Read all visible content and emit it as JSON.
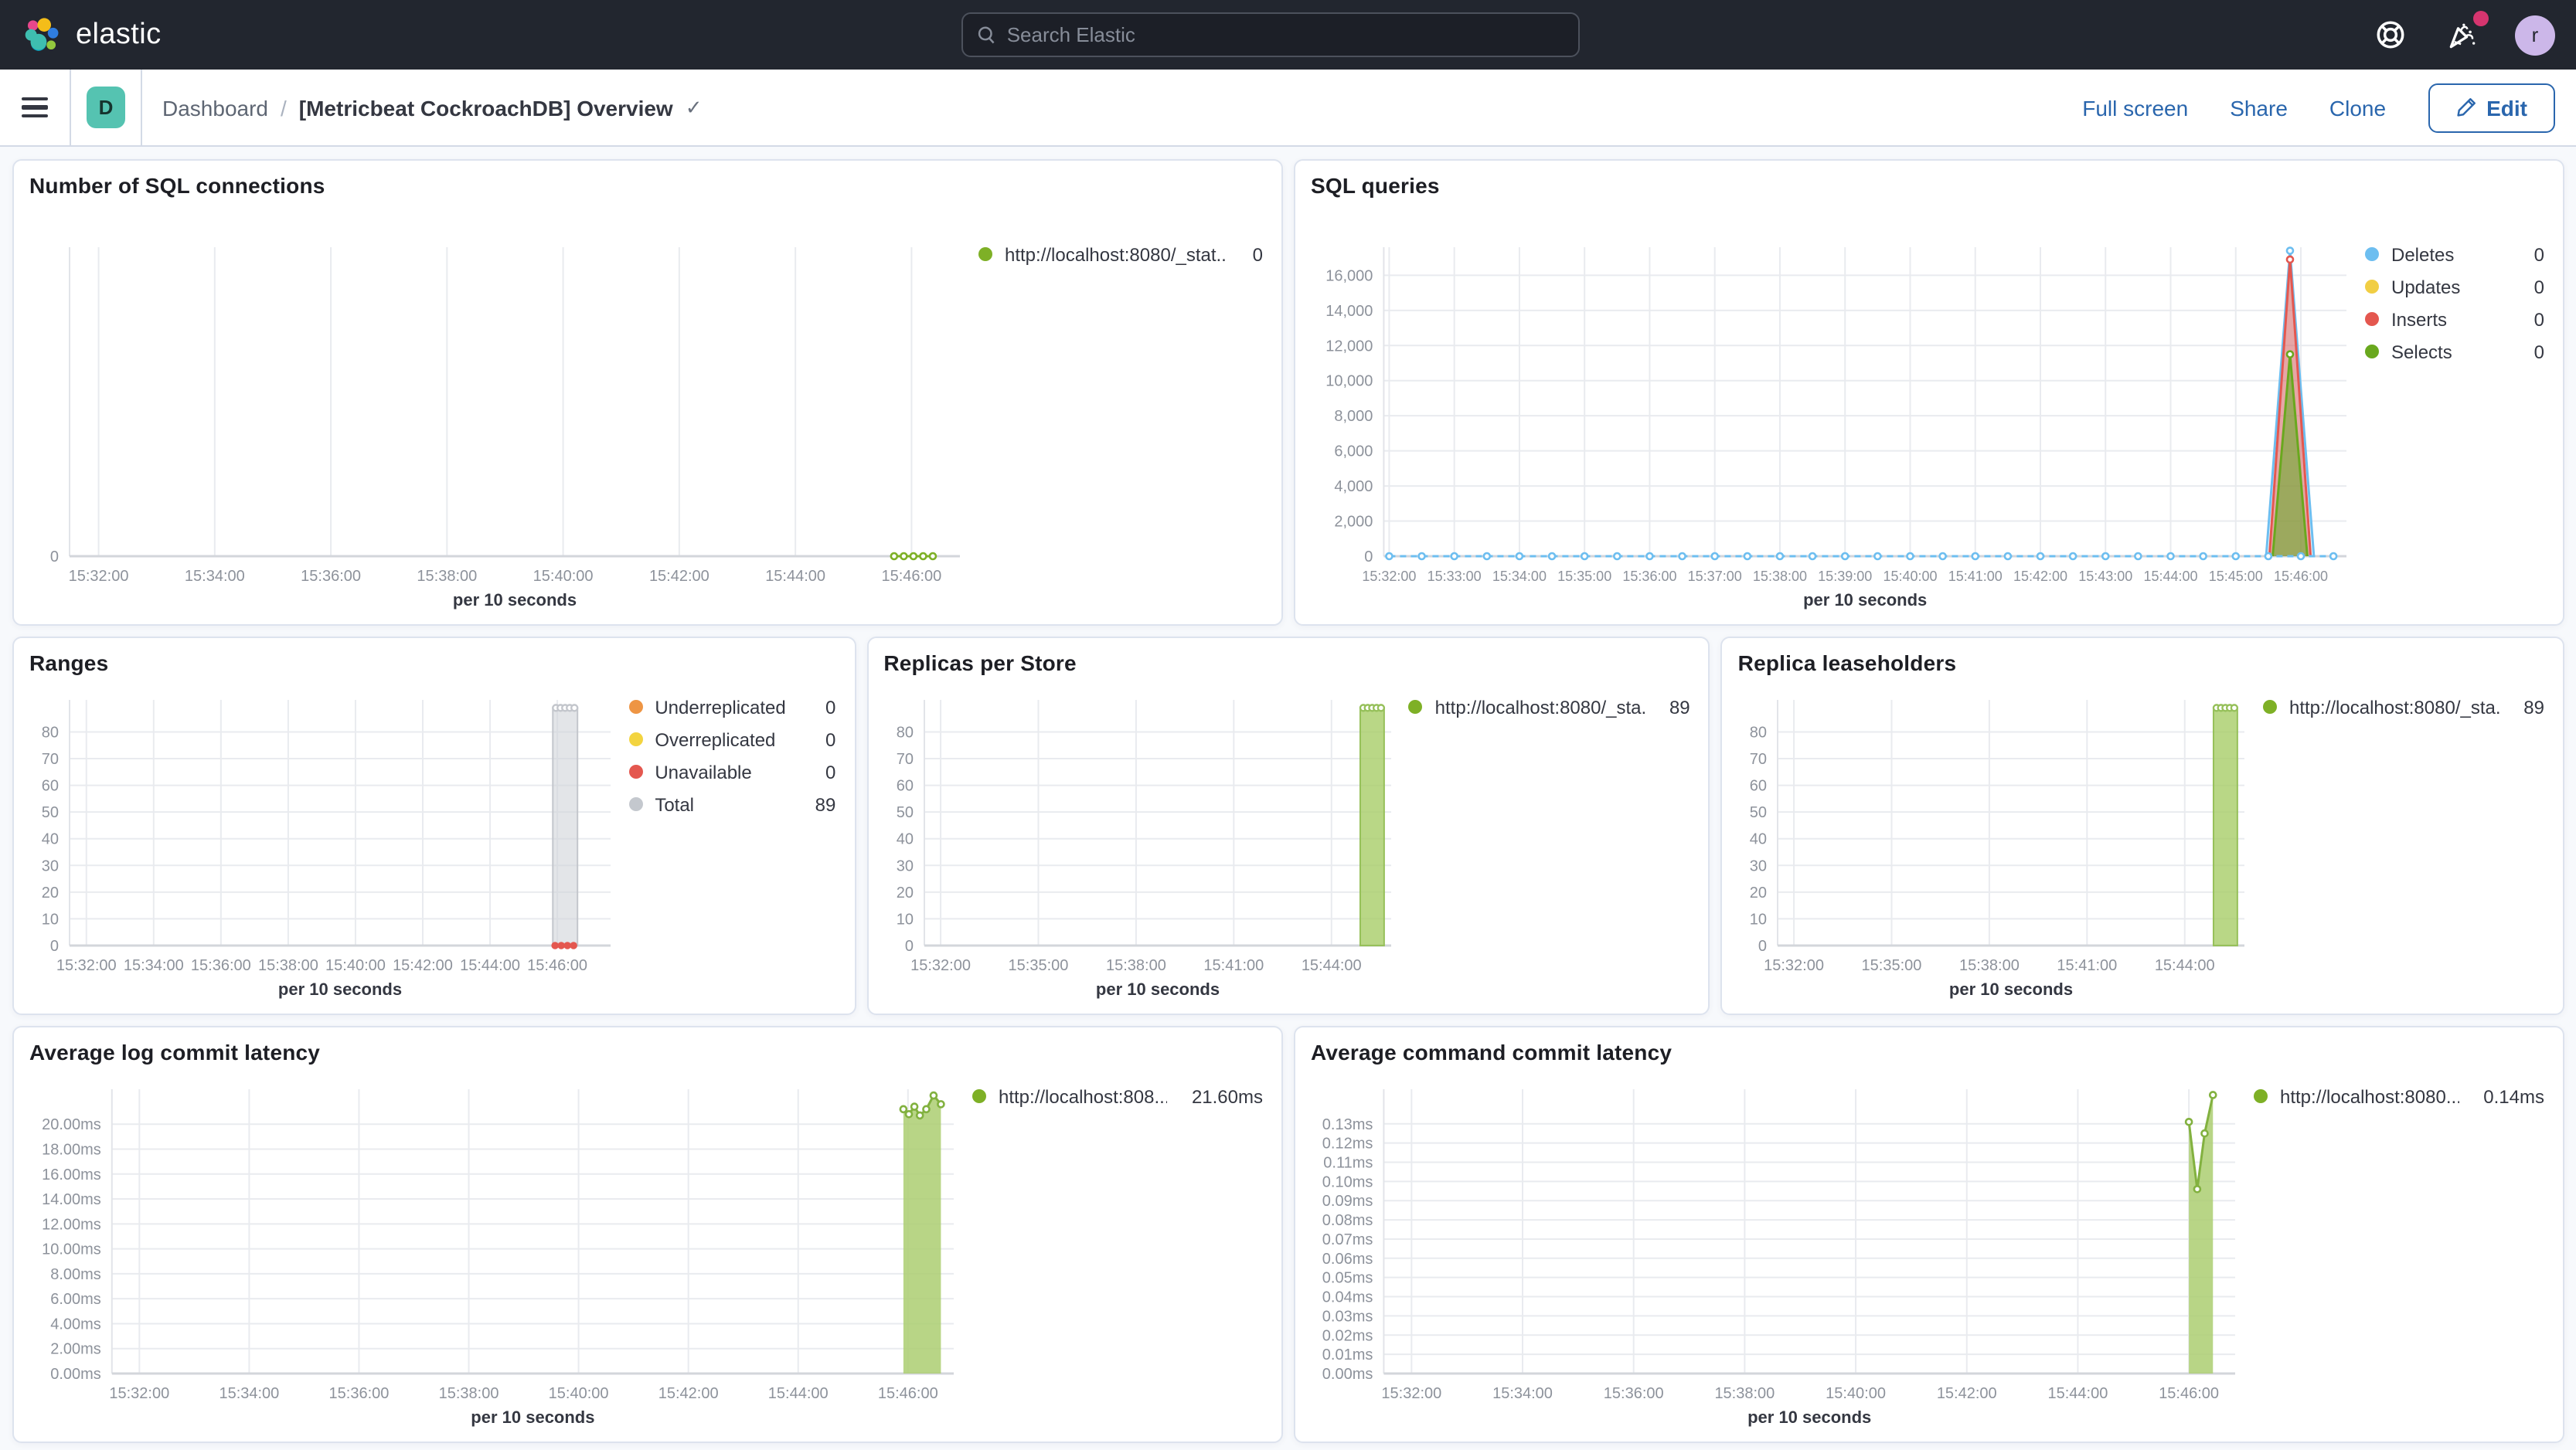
{
  "header": {
    "logo_text": "elastic",
    "search_placeholder": "Search Elastic",
    "avatar_initial": "r"
  },
  "toolbar": {
    "badge": "D",
    "breadcrumb_root": "Dashboard",
    "breadcrumb_separator": "/",
    "breadcrumb_current": "[Metricbeat CockroachDB] Overview",
    "check_glyph": "✓",
    "full_screen_label": "Full screen",
    "share_label": "Share",
    "clone_label": "Clone",
    "edit_label": "Edit"
  },
  "chart_data": [
    {
      "type": "line",
      "title": "Number of SQL connections",
      "xlabel": "per 10 seconds",
      "x_domain": [
        90,
        1010
      ],
      "x_ticks": [
        [
          120,
          "15:32:00"
        ],
        [
          240,
          "15:34:00"
        ],
        [
          360,
          "15:36:00"
        ],
        [
          480,
          "15:38:00"
        ],
        [
          600,
          "15:40:00"
        ],
        [
          720,
          "15:42:00"
        ],
        [
          840,
          "15:44:00"
        ],
        [
          960,
          "15:46:00"
        ]
      ],
      "y_domain": [
        0,
        1
      ],
      "y_ticks": [
        [
          0,
          "0"
        ]
      ],
      "legend": [
        {
          "color": "#7eb026",
          "label": "http://localhost:8080/_stat...",
          "value": "0"
        }
      ],
      "series": [
        {
          "type": "line",
          "color": "#7eb026",
          "dash": true,
          "markers": true,
          "points": [
            [
              942,
              0
            ],
            [
              952,
              0
            ],
            [
              962,
              0
            ],
            [
              972,
              0
            ],
            [
              982,
              0
            ]
          ]
        }
      ]
    },
    {
      "type": "line",
      "title": "SQL queries",
      "xlabel": "per 10 seconds",
      "x_domain": [
        115,
        1002
      ],
      "x_ticks": [
        [
          120,
          "15:32:00"
        ],
        [
          180,
          "15:33:00"
        ],
        [
          240,
          "15:34:00"
        ],
        [
          300,
          "15:35:00"
        ],
        [
          360,
          "15:36:00"
        ],
        [
          420,
          "15:37:00"
        ],
        [
          480,
          "15:38:00"
        ],
        [
          540,
          "15:39:00"
        ],
        [
          600,
          "15:40:00"
        ],
        [
          660,
          "15:41:00"
        ],
        [
          720,
          "15:42:00"
        ],
        [
          780,
          "15:43:00"
        ],
        [
          840,
          "15:44:00"
        ],
        [
          900,
          "15:45:00"
        ],
        [
          960,
          "15:46:00"
        ]
      ],
      "y_domain": [
        0,
        17600
      ],
      "y_ticks": [
        [
          0,
          "0"
        ],
        [
          2000,
          "2,000"
        ],
        [
          4000,
          "4,000"
        ],
        [
          6000,
          "6,000"
        ],
        [
          8000,
          "8,000"
        ],
        [
          10000,
          "10,000"
        ],
        [
          12000,
          "12,000"
        ],
        [
          14000,
          "14,000"
        ],
        [
          16000,
          "16,000"
        ]
      ],
      "tick_font": 9,
      "legend": [
        {
          "color": "#6dbef0",
          "label": "Deletes",
          "value": "0"
        },
        {
          "color": "#f1ce44",
          "label": "Updates",
          "value": "0"
        },
        {
          "color": "#e4574f",
          "label": "Inserts",
          "value": "0"
        },
        {
          "color": "#69a81e",
          "label": "Selects",
          "value": "0"
        }
      ],
      "series": [
        {
          "type": "line",
          "color": "#6dbef0",
          "fill": "rgba(109,190,240,0.15)",
          "points": [
            [
              928,
              0
            ],
            [
              950,
              17400
            ],
            [
              972,
              0
            ]
          ],
          "mark_idx": [
            1
          ]
        },
        {
          "type": "area",
          "color": "#e4574f",
          "fill": "rgba(228,87,79,0.5)",
          "points": [
            [
              931,
              0
            ],
            [
              950,
              16900
            ],
            [
              969,
              0
            ]
          ],
          "mark_idx": [
            1
          ]
        },
        {
          "type": "area",
          "color": "#69a81e",
          "fill": "rgba(116,170,56,0.65)",
          "points": [
            [
              934,
              0
            ],
            [
              950,
              11500
            ],
            [
              966,
              0
            ]
          ],
          "mark_idx": [
            1
          ]
        },
        {
          "type": "line",
          "color": "#6dbef0",
          "dash": true,
          "markers": true,
          "points": [
            [
              120,
              0
            ],
            [
              150,
              0
            ],
            [
              180,
              0
            ],
            [
              210,
              0
            ],
            [
              240,
              0
            ],
            [
              270,
              0
            ],
            [
              300,
              0
            ],
            [
              330,
              0
            ],
            [
              360,
              0
            ],
            [
              390,
              0
            ],
            [
              420,
              0
            ],
            [
              450,
              0
            ],
            [
              480,
              0
            ],
            [
              510,
              0
            ],
            [
              540,
              0
            ],
            [
              570,
              0
            ],
            [
              600,
              0
            ],
            [
              630,
              0
            ],
            [
              660,
              0
            ],
            [
              690,
              0
            ],
            [
              720,
              0
            ],
            [
              750,
              0
            ],
            [
              780,
              0
            ],
            [
              810,
              0
            ],
            [
              840,
              0
            ],
            [
              870,
              0
            ],
            [
              900,
              0
            ],
            [
              930,
              0
            ],
            [
              960,
              0
            ],
            [
              990,
              0
            ]
          ]
        }
      ]
    },
    {
      "type": "bar",
      "title": "Ranges",
      "xlabel": "per 10 seconds",
      "x_domain": [
        90,
        1055
      ],
      "x_ticks": [
        [
          120,
          "15:32:00"
        ],
        [
          240,
          "15:34:00"
        ],
        [
          360,
          "15:36:00"
        ],
        [
          480,
          "15:38:00"
        ],
        [
          600,
          "15:40:00"
        ],
        [
          720,
          "15:42:00"
        ],
        [
          840,
          "15:44:00"
        ],
        [
          960,
          "15:46:00"
        ]
      ],
      "y_domain": [
        0,
        92
      ],
      "y_ticks": [
        [
          0,
          "0"
        ],
        [
          10,
          "10"
        ],
        [
          20,
          "20"
        ],
        [
          30,
          "30"
        ],
        [
          40,
          "40"
        ],
        [
          50,
          "50"
        ],
        [
          60,
          "60"
        ],
        [
          70,
          "70"
        ],
        [
          80,
          "80"
        ]
      ],
      "legend": [
        {
          "color": "#ee9544",
          "label": "Underreplicated",
          "value": "0"
        },
        {
          "color": "#f3d440",
          "label": "Overreplicated",
          "value": "0"
        },
        {
          "color": "#e4574f",
          "label": "Unavailable",
          "value": "0"
        },
        {
          "color": "#c4c8ce",
          "label": "Total",
          "value": "89"
        }
      ],
      "series": [
        {
          "type": "bar",
          "color": "#c3c6cc",
          "fill": "rgba(209,212,217,0.6)",
          "x0": 952,
          "x1": 996,
          "value": 89,
          "markers": true
        },
        {
          "type": "dots",
          "color": "#e4574f",
          "points": [
            [
              956,
              0
            ],
            [
              967,
              0
            ],
            [
              978,
              0
            ],
            [
              989,
              0
            ]
          ]
        }
      ]
    },
    {
      "type": "bar",
      "title": "Replicas per Store",
      "xlabel": "per 10 seconds",
      "x_domain": [
        90,
        950
      ],
      "x_ticks": [
        [
          120,
          "15:32:00"
        ],
        [
          300,
          "15:35:00"
        ],
        [
          480,
          "15:38:00"
        ],
        [
          660,
          "15:41:00"
        ],
        [
          840,
          "15:44:00"
        ]
      ],
      "y_domain": [
        0,
        92
      ],
      "y_ticks": [
        [
          0,
          "0"
        ],
        [
          10,
          "10"
        ],
        [
          20,
          "20"
        ],
        [
          30,
          "30"
        ],
        [
          40,
          "40"
        ],
        [
          50,
          "50"
        ],
        [
          60,
          "60"
        ],
        [
          70,
          "70"
        ],
        [
          80,
          "80"
        ]
      ],
      "legend": [
        {
          "color": "#7eb026",
          "label": "http://localhost:8080/_sta...",
          "value": "89"
        }
      ],
      "series": [
        {
          "type": "bar",
          "color": "#96c05a",
          "fill": "rgba(167,205,104,0.8)",
          "x0": 893,
          "x1": 937,
          "value": 89,
          "markers": true
        }
      ]
    },
    {
      "type": "bar",
      "title": "Replica leaseholders",
      "xlabel": "per 10 seconds",
      "x_domain": [
        90,
        950
      ],
      "x_ticks": [
        [
          120,
          "15:32:00"
        ],
        [
          300,
          "15:35:00"
        ],
        [
          480,
          "15:38:00"
        ],
        [
          660,
          "15:41:00"
        ],
        [
          840,
          "15:44:00"
        ]
      ],
      "y_domain": [
        0,
        92
      ],
      "y_ticks": [
        [
          0,
          "0"
        ],
        [
          10,
          "10"
        ],
        [
          20,
          "20"
        ],
        [
          30,
          "30"
        ],
        [
          40,
          "40"
        ],
        [
          50,
          "50"
        ],
        [
          60,
          "60"
        ],
        [
          70,
          "70"
        ],
        [
          80,
          "80"
        ]
      ],
      "legend": [
        {
          "color": "#7eb026",
          "label": "http://localhost:8080/_sta...",
          "value": "89"
        }
      ],
      "series": [
        {
          "type": "bar",
          "color": "#96c05a",
          "fill": "rgba(167,205,104,0.8)",
          "x0": 893,
          "x1": 937,
          "value": 89,
          "markers": true
        }
      ]
    },
    {
      "type": "area",
      "title": "Average log commit latency",
      "xlabel": "per 10 seconds",
      "x_domain": [
        90,
        1010
      ],
      "x_ticks": [
        [
          120,
          "15:32:00"
        ],
        [
          240,
          "15:34:00"
        ],
        [
          360,
          "15:36:00"
        ],
        [
          480,
          "15:38:00"
        ],
        [
          600,
          "15:40:00"
        ],
        [
          720,
          "15:42:00"
        ],
        [
          840,
          "15:44:00"
        ],
        [
          960,
          "15:46:00"
        ]
      ],
      "y_domain": [
        0,
        22.8
      ],
      "y_ticks": [
        [
          0,
          "0.00ms"
        ],
        [
          2,
          "2.00ms"
        ],
        [
          4,
          "4.00ms"
        ],
        [
          6,
          "6.00ms"
        ],
        [
          8,
          "8.00ms"
        ],
        [
          10,
          "10.00ms"
        ],
        [
          12,
          "12.00ms"
        ],
        [
          14,
          "14.00ms"
        ],
        [
          16,
          "16.00ms"
        ],
        [
          18,
          "18.00ms"
        ],
        [
          20,
          "20.00ms"
        ]
      ],
      "legend": [
        {
          "color": "#7eb026",
          "label": "http://localhost:808...",
          "value": "21.60ms"
        }
      ],
      "series": [
        {
          "type": "area",
          "color": "#82b13f",
          "fill": "rgba(171,206,113,0.85)",
          "markers": true,
          "points": [
            [
              955,
              21.2
            ],
            [
              961,
              20.8
            ],
            [
              967,
              21.4
            ],
            [
              973,
              20.7
            ],
            [
              980,
              21.2
            ],
            [
              988,
              22.3
            ],
            [
              996,
              21.6
            ]
          ]
        }
      ]
    },
    {
      "type": "area",
      "title": "Average command commit latency",
      "xlabel": "per 10 seconds",
      "x_domain": [
        90,
        1010
      ],
      "x_ticks": [
        [
          120,
          "15:32:00"
        ],
        [
          240,
          "15:34:00"
        ],
        [
          360,
          "15:36:00"
        ],
        [
          480,
          "15:38:00"
        ],
        [
          600,
          "15:40:00"
        ],
        [
          720,
          "15:42:00"
        ],
        [
          840,
          "15:44:00"
        ],
        [
          960,
          "15:46:00"
        ]
      ],
      "y_domain": [
        0,
        0.148
      ],
      "y_ticks": [
        [
          0,
          "0.00ms"
        ],
        [
          0.01,
          "0.01ms"
        ],
        [
          0.02,
          "0.02ms"
        ],
        [
          0.03,
          "0.03ms"
        ],
        [
          0.04,
          "0.04ms"
        ],
        [
          0.05,
          "0.05ms"
        ],
        [
          0.06,
          "0.06ms"
        ],
        [
          0.07,
          "0.07ms"
        ],
        [
          0.08,
          "0.08ms"
        ],
        [
          0.09,
          "0.09ms"
        ],
        [
          0.1,
          "0.10ms"
        ],
        [
          0.11,
          "0.11ms"
        ],
        [
          0.12,
          "0.12ms"
        ],
        [
          0.13,
          "0.13ms"
        ]
      ],
      "legend": [
        {
          "color": "#7eb026",
          "label": "http://localhost:8080...",
          "value": "0.14ms"
        }
      ],
      "series": [
        {
          "type": "area",
          "color": "#82b13f",
          "fill": "rgba(171,206,113,0.85)",
          "markers": true,
          "points": [
            [
              960,
              0.131
            ],
            [
              969,
              0.096
            ],
            [
              977,
              0.125
            ],
            [
              986,
              0.145
            ]
          ]
        }
      ]
    }
  ]
}
